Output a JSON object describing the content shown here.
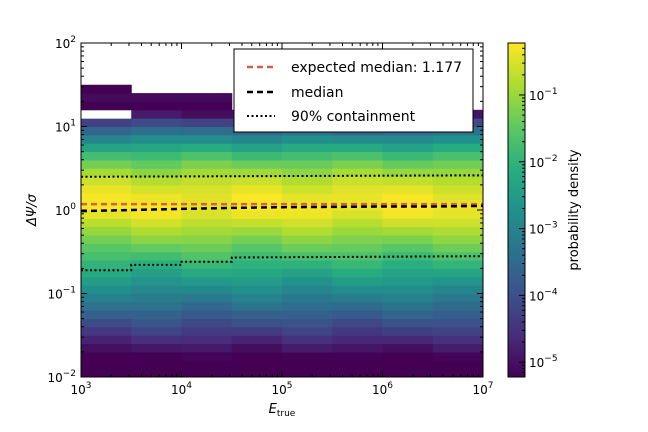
{
  "chart_data": {
    "type": "heatmap",
    "xlabel": "E",
    "xlabel_sub": "true",
    "ylabel": "ΔΨ/σ",
    "x_scale": "log",
    "y_scale": "log",
    "xlim": [
      1000,
      10000000
    ],
    "ylim": [
      0.01,
      100
    ],
    "x_ticks": [
      {
        "value": 1000,
        "base": "10",
        "exp": "3"
      },
      {
        "value": 10000,
        "base": "10",
        "exp": "4"
      },
      {
        "value": 100000,
        "base": "10",
        "exp": "5"
      },
      {
        "value": 1000000,
        "base": "10",
        "exp": "6"
      },
      {
        "value": 10000000,
        "base": "10",
        "exp": "7"
      }
    ],
    "y_ticks": [
      {
        "value": 0.01,
        "base": "10",
        "exp": "−2"
      },
      {
        "value": 0.1,
        "base": "10",
        "exp": "−1"
      },
      {
        "value": 1,
        "base": "10",
        "exp": "0"
      },
      {
        "value": 10,
        "base": "10",
        "exp": "1"
      },
      {
        "value": 100,
        "base": "10",
        "exp": "2"
      }
    ],
    "x_bin_edges": [
      1000,
      3162,
      10000,
      31623,
      100000,
      316228,
      1000000,
      3162278,
      10000000
    ],
    "y_bin_edges": [
      0.01,
      0.01259,
      0.01585,
      0.01995,
      0.02512,
      0.03162,
      0.03981,
      0.05012,
      0.0631,
      0.07943,
      0.1,
      0.1259,
      0.1585,
      0.1995,
      0.2512,
      0.3162,
      0.3981,
      0.5012,
      0.631,
      0.7943,
      1,
      1.259,
      1.585,
      1.995,
      2.512,
      3.162,
      3.981,
      5.012,
      6.31,
      7.943,
      10,
      12.59,
      15.85,
      19.95,
      25.12,
      31.62
    ],
    "colorbar": {
      "label": "probability density",
      "scale": "log",
      "range": [
        6e-06,
        0.6
      ],
      "ticks": [
        {
          "value": 1e-05,
          "base": "10",
          "exp": "−5"
        },
        {
          "value": 0.0001,
          "base": "10",
          "exp": "−4"
        },
        {
          "value": 0.001,
          "base": "10",
          "exp": "−3"
        },
        {
          "value": 0.01,
          "base": "10",
          "exp": "−2"
        },
        {
          "value": 0.1,
          "base": "10",
          "exp": "−1"
        }
      ]
    },
    "expected_median": {
      "label": "expected median:  1.177",
      "value": 1.177,
      "color": "#d1604a"
    },
    "median": {
      "label": "median",
      "x": [
        1000,
        3162,
        10000,
        31623,
        100000,
        316228,
        1000000,
        3162278,
        10000000
      ],
      "y": [
        0.97,
        1.0,
        1.03,
        1.06,
        1.08,
        1.09,
        1.1,
        1.1,
        1.12
      ]
    },
    "containment": {
      "label": "90% containment",
      "lower": {
        "x": [
          1000,
          3162,
          3162,
          10000,
          10000,
          31623,
          31623,
          10000000
        ],
        "y": [
          0.19,
          0.19,
          0.22,
          0.22,
          0.24,
          0.24,
          0.27,
          0.28
        ]
      },
      "upper": {
        "x": [
          1000,
          10000000
        ],
        "y": [
          2.5,
          2.6
        ]
      }
    },
    "legend_position": "top-right",
    "grid": false,
    "colormap": "viridis"
  }
}
